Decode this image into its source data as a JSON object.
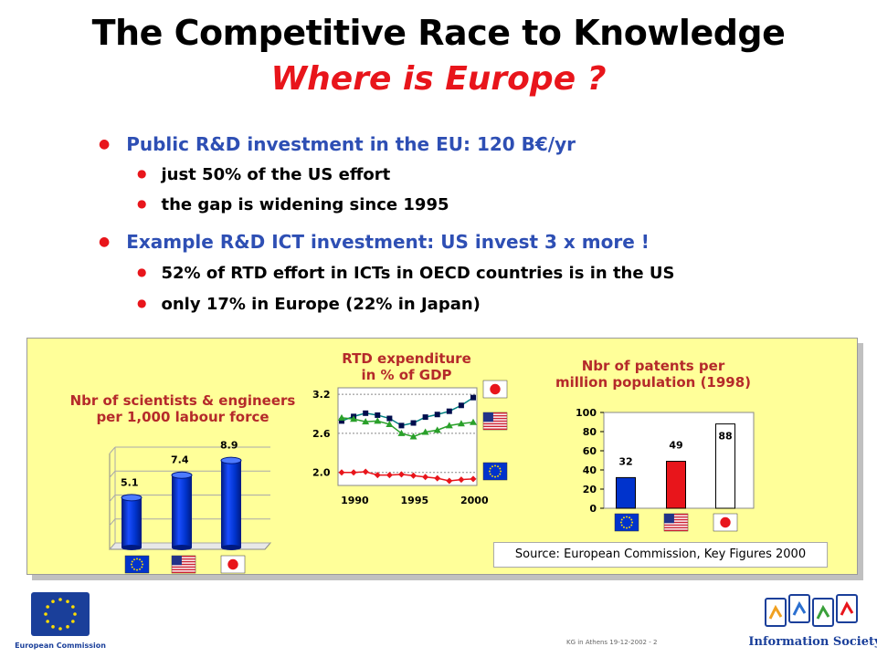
{
  "slide": {
    "title": "The Competitive Race to Knowledge",
    "subtitle": "Where is Europe ?",
    "bullets": [
      {
        "text": "Public R&D investment in the EU: 120 B€/yr",
        "sub": [
          "just 50% of the US effort",
          "the gap is widening since 1995"
        ]
      },
      {
        "text": "Example R&D ICT investment: US invest 3 x more !",
        "sub": [
          "52% of RTD effort in ICTs in OECD countries is in the US",
          "only 17% in Europe (22% in Japan)"
        ]
      }
    ],
    "source": "Source: European Commission, Key Figures 2000",
    "footer": "KG in Athens 19-12-2002 - 2",
    "logo_left": "European Commission",
    "logo_right": "Information Society"
  },
  "colors": {
    "eu_blue": "#0033cc",
    "red": "#e8151b",
    "panel": "#ffff99",
    "bullet_blue": "#2e4fb4"
  },
  "chart_data": [
    {
      "type": "bar",
      "title": "Nbr of scientists & engineers per 1,000 labour force",
      "categories": [
        "EU",
        "US",
        "Japan"
      ],
      "values": [
        5.1,
        7.4,
        8.9
      ],
      "value_labels": [
        "5.1",
        "7.4",
        "8.9"
      ],
      "ylim": [
        0,
        10
      ],
      "grid": true,
      "style": "3d-cylinder",
      "bar_color": "#0033cc"
    },
    {
      "type": "line",
      "title": "RTD expenditure in % of GDP",
      "x": [
        1989,
        1990,
        1991,
        1992,
        1993,
        1994,
        1995,
        1996,
        1997,
        1998,
        1999,
        2000
      ],
      "x_ticks": [
        "1990",
        "1995",
        "2000"
      ],
      "y_ticks": [
        "2.0",
        "2.6",
        "3.2"
      ],
      "ylim": [
        1.8,
        3.3
      ],
      "grid": true,
      "series": [
        {
          "flag": "Japan",
          "marker": "square",
          "color": "#008080",
          "values": [
            2.79,
            2.86,
            2.91,
            2.88,
            2.83,
            2.72,
            2.76,
            2.85,
            2.89,
            2.94,
            3.03,
            3.15
          ]
        },
        {
          "flag": "US",
          "marker": "triangle",
          "color": "#2aa02a",
          "values": [
            2.84,
            2.82,
            2.78,
            2.79,
            2.74,
            2.6,
            2.55,
            2.62,
            2.65,
            2.72,
            2.75,
            2.77
          ]
        },
        {
          "flag": "EU",
          "marker": "diamond",
          "color": "#e8151b",
          "values": [
            2.0,
            2.0,
            2.01,
            1.96,
            1.96,
            1.97,
            1.95,
            1.93,
            1.91,
            1.87,
            1.89,
            1.9
          ]
        }
      ]
    },
    {
      "type": "bar",
      "title": "Nbr of patents per million population (1998)",
      "categories": [
        "EU",
        "US",
        "Japan"
      ],
      "values": [
        32,
        49,
        88
      ],
      "value_labels": [
        "32",
        "49",
        "88"
      ],
      "y_ticks": [
        "0",
        "20",
        "40",
        "60",
        "80",
        "100"
      ],
      "ylim": [
        0,
        100
      ],
      "grid": false,
      "colors": [
        "#0033cc",
        "#e8151b",
        "#ffffff"
      ]
    }
  ]
}
